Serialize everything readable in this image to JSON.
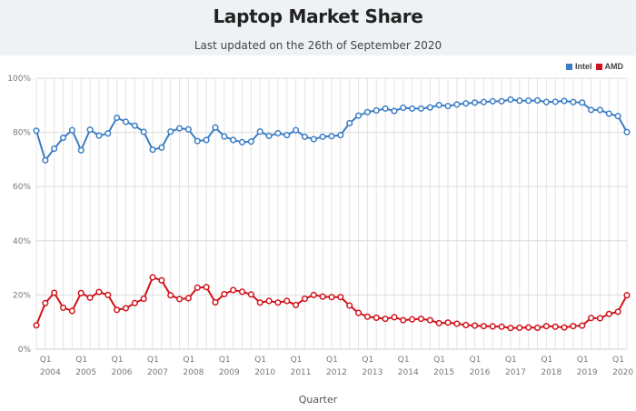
{
  "header": {
    "title": "Laptop Market Share",
    "subtitle": "Last updated on the 26th of September 2020"
  },
  "chart_data": {
    "type": "line",
    "title": "Laptop Market Share",
    "subtitle": "Last updated on the 26th of September 2020",
    "xlabel": "Quarter",
    "ylabel": "",
    "ylim": [
      0,
      100
    ],
    "yticks": [
      "0%",
      "20%",
      "40%",
      "60%",
      "80%",
      "100%"
    ],
    "grid": true,
    "legend_position": "top-right",
    "x_start": "Q4 2003",
    "x_end": "Q2 2020",
    "x_tick_labels": [
      {
        "q": "Q1",
        "year": "2004"
      },
      {
        "q": "Q1",
        "year": "2005"
      },
      {
        "q": "Q1",
        "year": "2006"
      },
      {
        "q": "Q1",
        "year": "2007"
      },
      {
        "q": "Q1",
        "year": "2008"
      },
      {
        "q": "Q1",
        "year": "2009"
      },
      {
        "q": "Q1",
        "year": "2010"
      },
      {
        "q": "Q1",
        "year": "2011"
      },
      {
        "q": "Q1",
        "year": "2012"
      },
      {
        "q": "Q1",
        "year": "2013"
      },
      {
        "q": "Q1",
        "year": "2014"
      },
      {
        "q": "Q1",
        "year": "2015"
      },
      {
        "q": "Q1",
        "year": "2016"
      },
      {
        "q": "Q1",
        "year": "2017"
      },
      {
        "q": "Q1",
        "year": "2018"
      },
      {
        "q": "Q1",
        "year": "2019"
      },
      {
        "q": "Q1",
        "year": "2020"
      }
    ],
    "series": [
      {
        "name": "Intel",
        "color": "#3b7dc4",
        "values": [
          80.6,
          69.7,
          74.0,
          78.0,
          80.8,
          73.4,
          81.0,
          78.8,
          79.6,
          85.4,
          83.9,
          82.5,
          80.2,
          73.6,
          74.4,
          80.3,
          81.5,
          81.1,
          76.8,
          77.2,
          81.8,
          78.5,
          77.2,
          76.4,
          76.6,
          80.3,
          78.7,
          79.7,
          79.0,
          80.8,
          78.4,
          77.5,
          78.4,
          78.6,
          79.0,
          83.4,
          86.2,
          87.5,
          88.1,
          88.8,
          87.9,
          89.1,
          88.8,
          88.8,
          89.2,
          90.1,
          89.7,
          90.3,
          90.7,
          91.0,
          91.2,
          91.5,
          91.5,
          92.1,
          91.7,
          91.7,
          91.8,
          91.2,
          91.3,
          91.6,
          91.2,
          91.0,
          88.3,
          88.3,
          86.9,
          86.0,
          80.1
        ]
      },
      {
        "name": "AMD",
        "color": "#d0121b",
        "values": [
          8.8,
          17.0,
          20.8,
          15.3,
          14.1,
          20.7,
          19.0,
          21.1,
          20.0,
          14.5,
          15.1,
          17.0,
          18.6,
          26.5,
          25.4,
          19.9,
          18.5,
          18.8,
          22.7,
          22.9,
          17.3,
          20.3,
          21.8,
          21.2,
          20.2,
          17.2,
          17.8,
          17.2,
          17.8,
          16.3,
          18.6,
          20.0,
          19.4,
          19.2,
          19.2,
          16.1,
          13.4,
          12.0,
          11.6,
          11.2,
          11.8,
          10.7,
          11.0,
          11.2,
          10.7,
          9.6,
          9.8,
          9.4,
          8.9,
          8.7,
          8.5,
          8.4,
          8.3,
          7.8,
          7.9,
          8.0,
          7.9,
          8.5,
          8.3,
          8.0,
          8.5,
          8.7,
          11.5,
          11.4,
          13.0,
          13.8,
          19.9
        ]
      }
    ]
  }
}
